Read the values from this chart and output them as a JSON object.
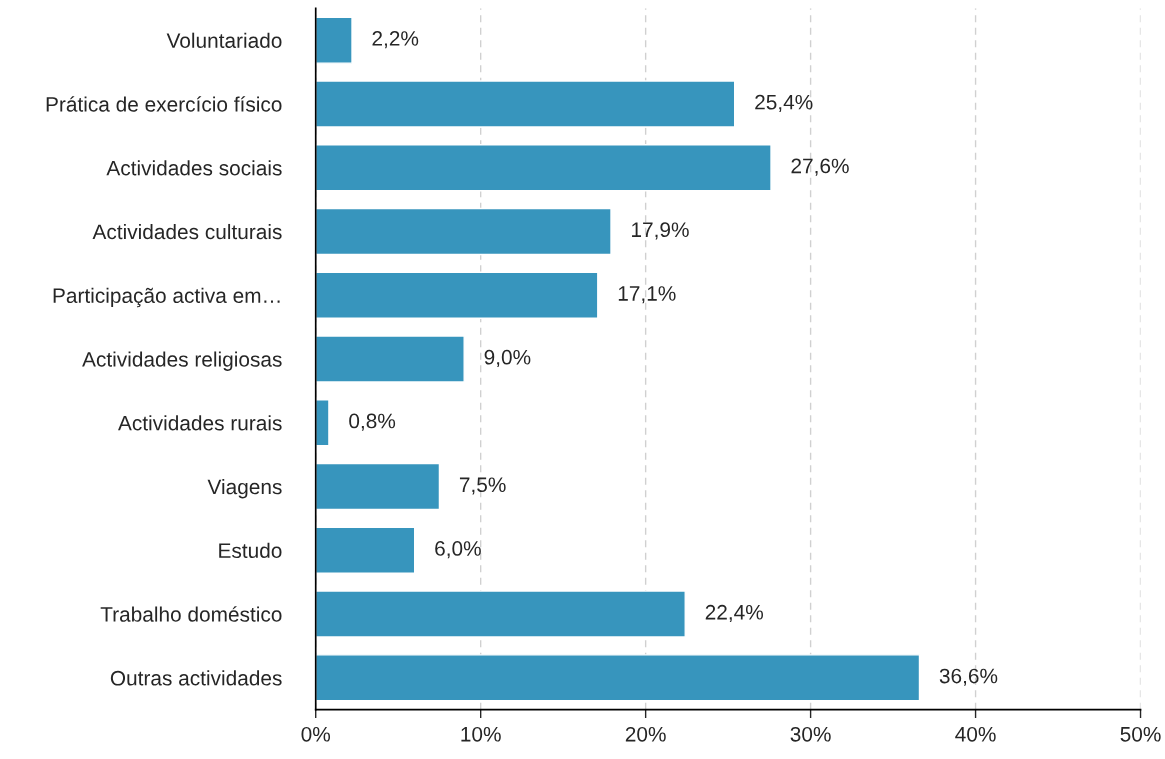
{
  "chart_data": {
    "type": "bar",
    "orientation": "horizontal",
    "categories": [
      "Voluntariado",
      "Prática de exercício físico",
      "Actividades sociais",
      "Actividades culturais",
      "Participação activa em…",
      "Actividades religiosas",
      "Actividades rurais",
      "Viagens",
      "Estudo",
      "Trabalho doméstico",
      "Outras actividades"
    ],
    "values": [
      2.2,
      25.4,
      27.6,
      17.9,
      17.1,
      9.0,
      0.8,
      7.5,
      6.0,
      22.4,
      36.6
    ],
    "value_labels": [
      "2,2%",
      "25,4%",
      "27,6%",
      "17,9%",
      "17,1%",
      "9,0%",
      "0,8%",
      "7,5%",
      "6,0%",
      "22,4%",
      "36,6%"
    ],
    "color": "#3795bd",
    "xlim": [
      0,
      50
    ],
    "xticks": [
      {
        "value": 0,
        "label": "0%"
      },
      {
        "value": 10,
        "label": "10%"
      },
      {
        "value": 20,
        "label": "20%"
      },
      {
        "value": 30,
        "label": "30%"
      },
      {
        "value": 40,
        "label": "40%"
      },
      {
        "value": 50,
        "label": "50%"
      }
    ],
    "grid": "x"
  }
}
